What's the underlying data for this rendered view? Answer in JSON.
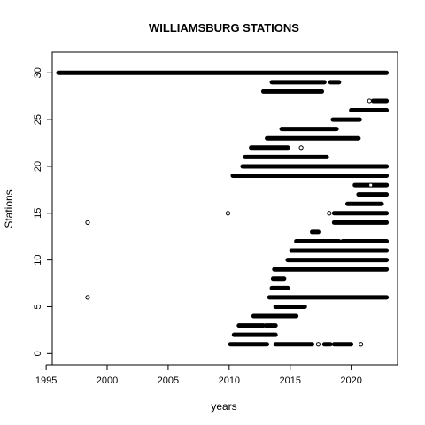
{
  "chart_data": {
    "type": "scatter",
    "title": "WILLIAMSBURG STATIONS",
    "xlabel": "years",
    "ylabel": "Stations",
    "xlim": [
      1995.5,
      2023.8
    ],
    "ylim": [
      -1.2,
      32.2
    ],
    "x_ticks": [
      1995,
      2000,
      2005,
      2010,
      2015,
      2020
    ],
    "y_ticks": [
      0,
      5,
      10,
      15,
      20,
      25,
      30
    ],
    "grid": false,
    "legend": "none",
    "marker": "open-circle",
    "color": "#000000",
    "segments": [
      {
        "station": 30,
        "x": [
          1996.0,
          2022.9
        ]
      },
      {
        "station": 29,
        "x": [
          2013.5,
          2017.8
        ]
      },
      {
        "station": 29,
        "x": [
          2018.3,
          2019.0
        ]
      },
      {
        "station": 28,
        "x": [
          2012.8,
          2017.6
        ]
      },
      {
        "station": 27,
        "x": [
          2021.8,
          2022.9
        ]
      },
      {
        "station": 26,
        "x": [
          2020.0,
          2022.9
        ]
      },
      {
        "station": 25,
        "x": [
          2018.5,
          2020.7
        ]
      },
      {
        "station": 24,
        "x": [
          2014.3,
          2018.8
        ]
      },
      {
        "station": 23,
        "x": [
          2013.1,
          2020.6
        ]
      },
      {
        "station": 22,
        "x": [
          2011.8,
          2014.8
        ]
      },
      {
        "station": 21,
        "x": [
          2011.3,
          2018.0
        ]
      },
      {
        "station": 20,
        "x": [
          2011.1,
          2022.9
        ]
      },
      {
        "station": 19,
        "x": [
          2010.3,
          2022.9
        ]
      },
      {
        "station": 18,
        "x": [
          2020.3,
          2022.9
        ]
      },
      {
        "station": 17,
        "x": [
          2020.6,
          2022.9
        ]
      },
      {
        "station": 16,
        "x": [
          2019.7,
          2022.5
        ]
      },
      {
        "station": 15,
        "x": [
          2018.6,
          2022.9
        ]
      },
      {
        "station": 14,
        "x": [
          2018.6,
          2022.9
        ]
      },
      {
        "station": 13,
        "x": [
          2016.8,
          2017.3
        ]
      },
      {
        "station": 12,
        "x": [
          2015.5,
          2019.0
        ]
      },
      {
        "station": 12,
        "x": [
          2019.3,
          2022.9
        ]
      },
      {
        "station": 11,
        "x": [
          2015.1,
          2022.9
        ]
      },
      {
        "station": 10,
        "x": [
          2014.8,
          2022.9
        ]
      },
      {
        "station": 9,
        "x": [
          2013.7,
          2022.9
        ]
      },
      {
        "station": 8,
        "x": [
          2013.6,
          2014.5
        ]
      },
      {
        "station": 7,
        "x": [
          2013.5,
          2014.8
        ]
      },
      {
        "station": 6,
        "x": [
          2013.3,
          2022.9
        ]
      },
      {
        "station": 5,
        "x": [
          2013.8,
          2016.2
        ]
      },
      {
        "station": 4,
        "x": [
          2012.0,
          2015.5
        ]
      },
      {
        "station": 3,
        "x": [
          2010.8,
          2012.8
        ]
      },
      {
        "station": 3,
        "x": [
          2013.0,
          2013.8
        ]
      },
      {
        "station": 2,
        "x": [
          2010.4,
          2013.8
        ]
      },
      {
        "station": 1,
        "x": [
          2010.1,
          2013.1
        ]
      },
      {
        "station": 1,
        "x": [
          2013.8,
          2016.8
        ]
      },
      {
        "station": 1,
        "x": [
          2017.8,
          2018.3
        ]
      },
      {
        "station": 1,
        "x": [
          2018.6,
          2020.0
        ]
      }
    ],
    "points": [
      {
        "x": 1998.4,
        "y": 14
      },
      {
        "x": 1998.4,
        "y": 6
      },
      {
        "x": 2009.9,
        "y": 15
      },
      {
        "x": 2015.9,
        "y": 22
      },
      {
        "x": 2018.2,
        "y": 15
      },
      {
        "x": 2021.5,
        "y": 27
      },
      {
        "x": 2020.8,
        "y": 1
      },
      {
        "x": 2017.3,
        "y": 1
      },
      {
        "x": 2021.6,
        "y": 18
      }
    ]
  }
}
